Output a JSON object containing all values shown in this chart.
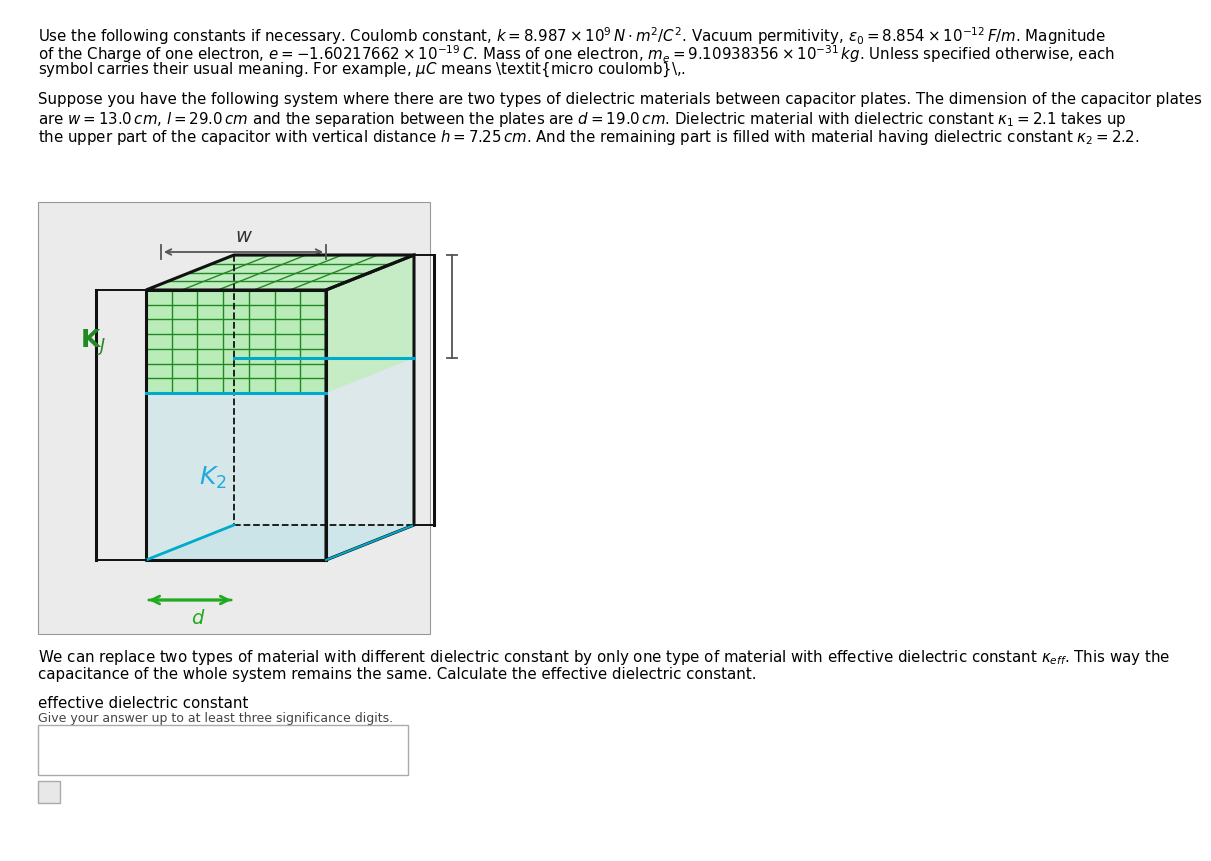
{
  "background_color": "#ffffff",
  "image_bg": "#ebebeb",
  "line1": "Use the following constants if necessary. Coulomb constant, $k = 8.987 \\times 10^9 \\, N \\cdot m^2/C^2$. Vacuum permitivity, $\\epsilon_0 = 8.854 \\times 10^{-12} \\, F/m$. Magnitude",
  "line2": "of the Charge of one electron, $e = -1.60217662 \\times 10^{-19} \\, C$. Mass of one electron, $m_e = 9.10938356 \\times 10^{-31} \\, kg$. Unless specified otherwise, each",
  "line3": "symbol carries their usual meaning. For example, $\\mu C$ means \\textit{micro coulomb}\\,.",
  "p2l1": "Suppose you have the following system where there are two types of dielectric materials between capacitor plates. The dimension of the capacitor plates",
  "p2l2": "are $w = 13.0 \\, cm$, $l = 29.0 \\, cm$ and the separation between the plates are $d = 19.0 \\, cm$. Dielectric material with dielectric constant $\\kappa_1 = 2.1$ takes up",
  "p2l3": "the upper part of the capacitor with vertical distance $h = 7.25 \\, cm$. And the remaining part is filled with material having dielectric constant $\\kappa_2 = 2.2$.",
  "p3l1": "We can replace two types of material with different dielectric constant by only one type of material with effective dielectric constant $\\kappa_{eff}$. This way the",
  "p3l2": "capacitance of the whole system remains the same. Calculate the effective dielectric constant.",
  "lbl_eff": "effective dielectric constant",
  "lbl_sig": "Give your answer up to at least three significance digits.",
  "green": "#22aa22",
  "cyan": "#00aacc",
  "k1_color": "#22aa22",
  "k2_color": "#22aadd"
}
